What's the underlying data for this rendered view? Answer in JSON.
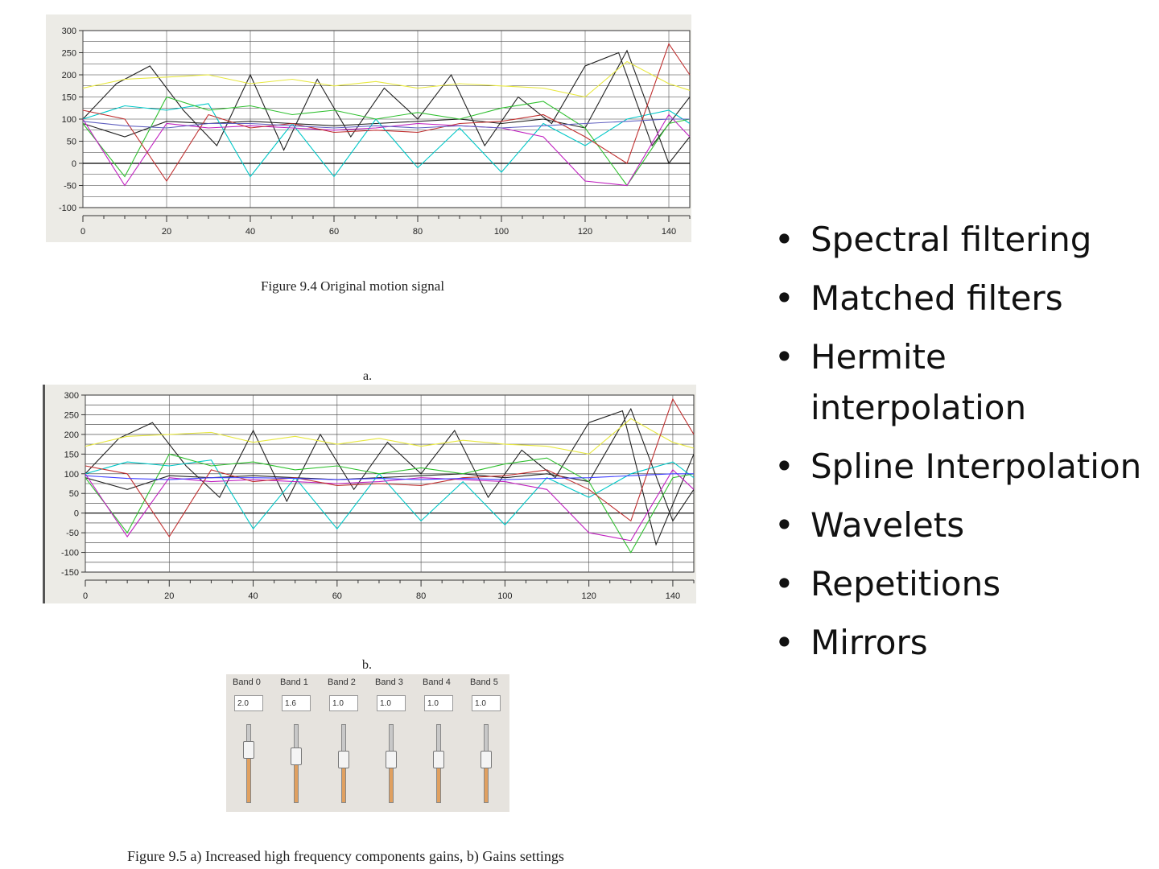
{
  "chart_data": [
    {
      "type": "line",
      "title": "",
      "xlabel": "",
      "ylabel": "",
      "xlim": [
        0,
        145
      ],
      "ylim": [
        -100,
        300
      ],
      "x_ticks": [
        0,
        20,
        40,
        60,
        80,
        100,
        120,
        140
      ],
      "y_ticks": [
        300,
        250,
        200,
        150,
        100,
        50,
        0,
        -50,
        -100
      ],
      "grid": true,
      "series": [
        {
          "color": "#222222",
          "x": [
            0,
            8,
            16,
            24,
            32,
            40,
            48,
            56,
            64,
            72,
            80,
            88,
            96,
            104,
            112,
            120,
            128,
            136,
            145
          ],
          "values": [
            100,
            180,
            220,
            120,
            40,
            200,
            30,
            190,
            60,
            170,
            100,
            200,
            40,
            150,
            90,
            220,
            250,
            40,
            150
          ]
        },
        {
          "color": "#222222",
          "x": [
            0,
            10,
            20,
            30,
            40,
            50,
            60,
            70,
            80,
            90,
            100,
            110,
            120,
            130,
            140,
            145
          ],
          "values": [
            90,
            60,
            95,
            90,
            95,
            90,
            85,
            90,
            95,
            100,
            90,
            100,
            80,
            255,
            0,
            60
          ]
        },
        {
          "color": "#00c8c8",
          "x": [
            0,
            10,
            20,
            30,
            40,
            50,
            60,
            70,
            80,
            90,
            100,
            110,
            120,
            130,
            140,
            145
          ],
          "values": [
            100,
            130,
            120,
            135,
            -30,
            90,
            -30,
            100,
            -10,
            80,
            -20,
            90,
            40,
            100,
            120,
            90
          ]
        },
        {
          "color": "#e8e840",
          "x": [
            0,
            10,
            20,
            30,
            40,
            50,
            60,
            70,
            80,
            90,
            100,
            110,
            120,
            130,
            140,
            145
          ],
          "values": [
            170,
            190,
            195,
            200,
            180,
            190,
            175,
            185,
            170,
            180,
            175,
            170,
            150,
            230,
            180,
            165
          ]
        },
        {
          "color": "#30c030",
          "x": [
            0,
            10,
            20,
            30,
            40,
            50,
            60,
            70,
            80,
            90,
            100,
            110,
            120,
            130,
            140,
            145
          ],
          "values": [
            90,
            -30,
            150,
            120,
            130,
            110,
            120,
            100,
            115,
            100,
            125,
            140,
            80,
            -50,
            90,
            100
          ]
        },
        {
          "color": "#c020c0",
          "x": [
            0,
            10,
            20,
            30,
            40,
            50,
            60,
            70,
            80,
            90,
            100,
            110,
            120,
            130,
            140,
            145
          ],
          "values": [
            100,
            -50,
            90,
            80,
            85,
            80,
            75,
            80,
            90,
            85,
            80,
            60,
            -40,
            -50,
            110,
            60
          ]
        },
        {
          "color": "#c03030",
          "x": [
            0,
            10,
            20,
            30,
            40,
            50,
            60,
            70,
            80,
            90,
            100,
            110,
            120,
            130,
            140,
            145
          ],
          "values": [
            120,
            100,
            -40,
            110,
            80,
            90,
            70,
            75,
            70,
            90,
            95,
            110,
            60,
            0,
            270,
            200
          ]
        },
        {
          "color": "#6060c0",
          "x": [
            0,
            10,
            20,
            30,
            40,
            50,
            60,
            70,
            80,
            90,
            100,
            110,
            120,
            130,
            140,
            145
          ],
          "values": [
            95,
            85,
            80,
            90,
            90,
            85,
            80,
            85,
            80,
            85,
            80,
            85,
            90,
            95,
            100,
            100
          ]
        }
      ]
    },
    {
      "type": "line",
      "title": "",
      "xlabel": "",
      "ylabel": "",
      "xlim": [
        0,
        145
      ],
      "ylim": [
        -150,
        300
      ],
      "x_ticks": [
        0,
        20,
        40,
        60,
        80,
        100,
        120,
        140
      ],
      "y_ticks": [
        300,
        250,
        200,
        150,
        100,
        50,
        0,
        -50,
        -100,
        -150
      ],
      "grid": true,
      "series": [
        {
          "color": "#222222",
          "x": [
            0,
            8,
            16,
            24,
            32,
            40,
            48,
            56,
            64,
            72,
            80,
            88,
            96,
            104,
            112,
            120,
            128,
            136,
            145
          ],
          "values": [
            100,
            190,
            230,
            120,
            40,
            210,
            30,
            200,
            60,
            180,
            100,
            210,
            40,
            160,
            90,
            230,
            260,
            -80,
            150
          ]
        },
        {
          "color": "#222222",
          "x": [
            0,
            10,
            20,
            30,
            40,
            50,
            60,
            70,
            80,
            90,
            100,
            110,
            120,
            130,
            140,
            145
          ],
          "values": [
            90,
            60,
            95,
            90,
            95,
            90,
            85,
            90,
            95,
            100,
            90,
            100,
            80,
            265,
            -20,
            60
          ]
        },
        {
          "color": "#00c8c8",
          "x": [
            0,
            10,
            20,
            30,
            40,
            50,
            60,
            70,
            80,
            90,
            100,
            110,
            120,
            130,
            140,
            145
          ],
          "values": [
            100,
            130,
            120,
            135,
            -40,
            90,
            -40,
            100,
            -20,
            80,
            -30,
            90,
            40,
            100,
            130,
            90
          ]
        },
        {
          "color": "#e8e840",
          "x": [
            0,
            10,
            20,
            30,
            40,
            50,
            60,
            70,
            80,
            90,
            100,
            110,
            120,
            130,
            140,
            145
          ],
          "values": [
            170,
            195,
            200,
            205,
            180,
            195,
            175,
            190,
            170,
            185,
            175,
            170,
            150,
            240,
            180,
            165
          ]
        },
        {
          "color": "#30c030",
          "x": [
            0,
            10,
            20,
            30,
            40,
            50,
            60,
            70,
            80,
            90,
            100,
            110,
            120,
            130,
            140,
            145
          ],
          "values": [
            90,
            -50,
            150,
            120,
            130,
            110,
            120,
            100,
            115,
            100,
            125,
            140,
            80,
            -100,
            90,
            100
          ]
        },
        {
          "color": "#c020c0",
          "x": [
            0,
            10,
            20,
            30,
            40,
            50,
            60,
            70,
            80,
            90,
            100,
            110,
            120,
            130,
            140,
            145
          ],
          "values": [
            100,
            -60,
            90,
            80,
            85,
            80,
            75,
            80,
            90,
            85,
            80,
            60,
            -50,
            -70,
            110,
            60
          ]
        },
        {
          "color": "#c03030",
          "x": [
            0,
            10,
            20,
            30,
            40,
            50,
            60,
            70,
            80,
            90,
            100,
            110,
            120,
            130,
            140,
            145
          ],
          "values": [
            120,
            100,
            -60,
            110,
            80,
            90,
            70,
            75,
            70,
            90,
            95,
            110,
            60,
            -20,
            290,
            200
          ]
        },
        {
          "color": "#4040ff",
          "x": [
            0,
            10,
            20,
            30,
            40,
            50,
            60,
            70,
            80,
            90,
            100,
            110,
            120,
            130,
            140,
            145
          ],
          "values": [
            95,
            88,
            85,
            90,
            90,
            88,
            85,
            88,
            85,
            88,
            85,
            88,
            90,
            95,
            100,
            100
          ]
        }
      ]
    }
  ],
  "captions": {
    "fig94": "Figure 9.4  Original motion signal",
    "label_a": "a.",
    "label_b": "b.",
    "fig95": "Figure  9.5  a) Increased high frequency components gains, b) Gains settings"
  },
  "gains": {
    "bands": [
      {
        "label": "Band 0",
        "value": "2.0",
        "level": 0.72
      },
      {
        "label": "Band 1",
        "value": "1.6",
        "level": 0.62
      },
      {
        "label": "Band 2",
        "value": "1.0",
        "level": 0.56
      },
      {
        "label": "Band 3",
        "value": "1.0",
        "level": 0.56
      },
      {
        "label": "Band 4",
        "value": "1.0",
        "level": 0.56
      },
      {
        "label": "Band 5",
        "value": "1.0",
        "level": 0.56
      }
    ]
  },
  "bullets": [
    "Spectral filtering",
    "Matched filters",
    "Hermite interpolation",
    "Spline Interpolation",
    "Wavelets",
    "Repetitions",
    "Mirrors"
  ]
}
